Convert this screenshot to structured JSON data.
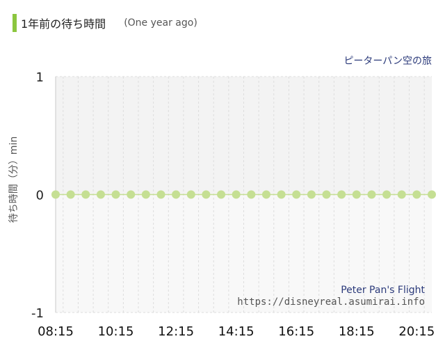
{
  "header": {
    "title": "1年前の待ち時間",
    "subtitle": "(One year ago)"
  },
  "chart_data": {
    "type": "scatter",
    "series_label_top": "ピーターパン空の旅",
    "ylabel": "待ち時間（分）min",
    "ylim": [
      -1,
      1
    ],
    "yticks": [
      "1",
      "0",
      "-1"
    ],
    "xtick_labels": [
      "08:15",
      "10:15",
      "12:15",
      "14:15",
      "16:15",
      "18:15",
      "20:15"
    ],
    "x": [
      "08:15",
      "08:45",
      "09:15",
      "09:45",
      "10:15",
      "10:45",
      "11:15",
      "11:45",
      "12:15",
      "12:45",
      "13:15",
      "13:45",
      "14:15",
      "14:45",
      "15:15",
      "15:45",
      "16:15",
      "16:45",
      "17:15",
      "17:45",
      "18:15",
      "18:45",
      "19:15",
      "19:45",
      "20:15",
      "20:45"
    ],
    "values": [
      0,
      0,
      0,
      0,
      0,
      0,
      0,
      0,
      0,
      0,
      0,
      0,
      0,
      0,
      0,
      0,
      0,
      0,
      0,
      0,
      0,
      0,
      0,
      0,
      0,
      0
    ],
    "marker_color": "#c5df93",
    "watermark_en": "Peter Pan's Flight",
    "watermark_url": "https://disneyreal.asumirai.info"
  }
}
